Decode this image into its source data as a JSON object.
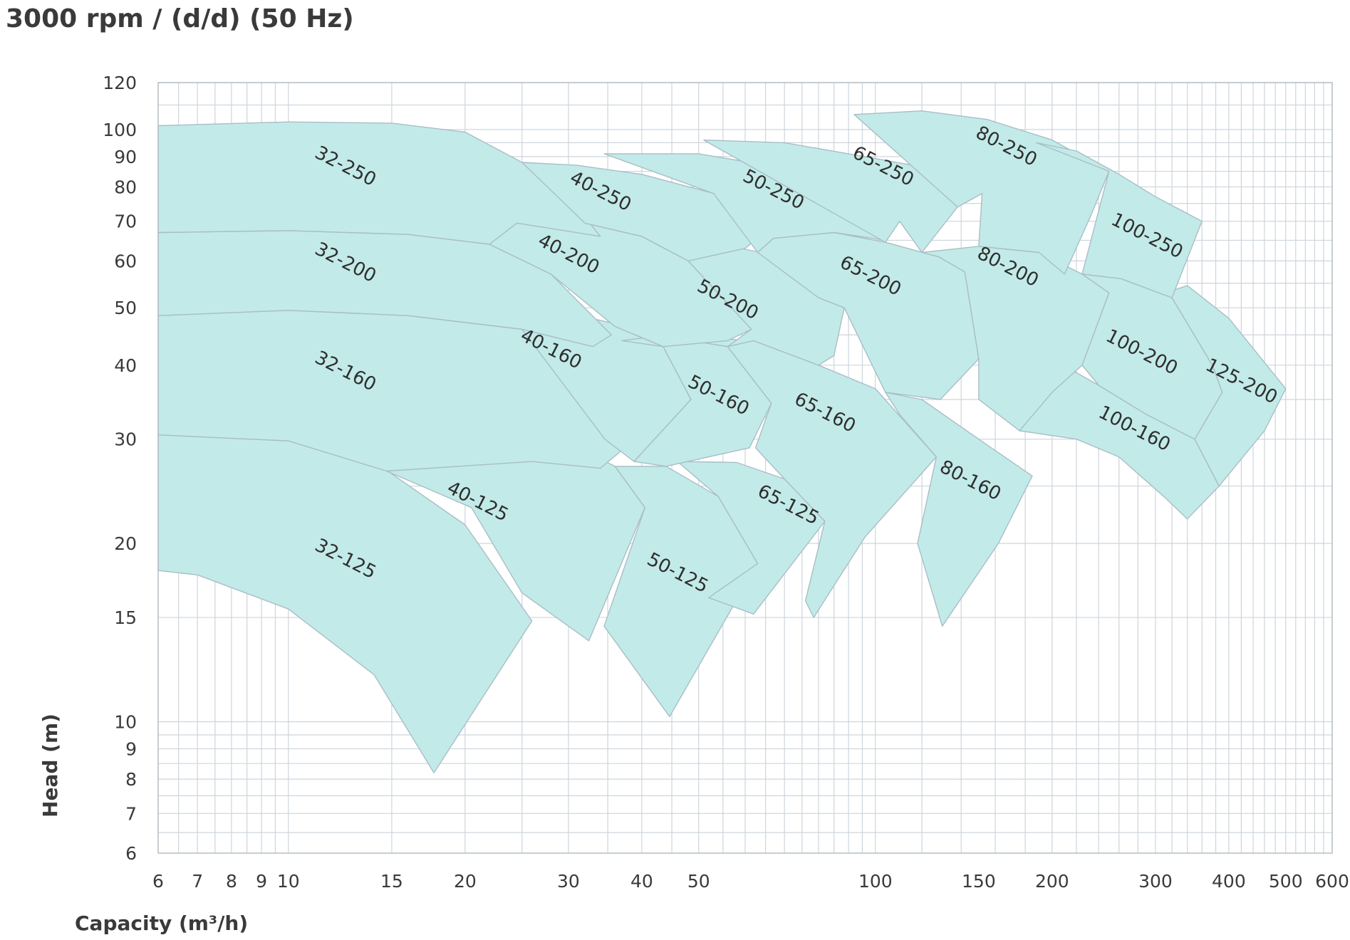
{
  "chart_data": {
    "type": "area",
    "title": "3000 rpm / (d/d) (50 Hz)",
    "xlabel": "Capacity (m³/h)",
    "ylabel": "Head (m)",
    "x_scale": "log",
    "y_scale": "log",
    "xlim": [
      6,
      600
    ],
    "ylim": [
      6,
      120
    ],
    "x_ticks": [
      "6",
      "7",
      "8",
      "9",
      "10",
      "15",
      "20",
      "30",
      "40",
      "50",
      "100",
      "150",
      "200",
      "300",
      "400",
      "500",
      "600"
    ],
    "y_ticks": [
      "6",
      "7",
      "8",
      "9",
      "10",
      "15",
      "20",
      "30",
      "40",
      "50",
      "60",
      "70",
      "80",
      "90",
      "100",
      "120"
    ],
    "grid": true,
    "colors": {
      "fill": "#c2eae8",
      "edge": "#a9bec6",
      "grid": "#cdd5db"
    },
    "regions": [
      {
        "label": "32-125",
        "label_at": [
          12.5,
          18.8
        ],
        "points": [
          [
            6,
            30.5
          ],
          [
            10,
            29.8
          ],
          [
            14,
            27.5
          ],
          [
            20,
            21.5
          ],
          [
            26,
            14.8
          ],
          [
            17.7,
            8.2
          ],
          [
            14,
            12
          ],
          [
            10,
            15.5
          ],
          [
            7,
            17.7
          ],
          [
            6,
            18
          ]
        ]
      },
      {
        "label": "40-125",
        "label_at": [
          21,
          23.5
        ],
        "points": [
          [
            14.7,
            26.5
          ],
          [
            16.6,
            33
          ],
          [
            26,
            31.8
          ],
          [
            36,
            27
          ],
          [
            40.5,
            23
          ],
          [
            32.5,
            13.7
          ],
          [
            25,
            16.5
          ],
          [
            20.5,
            23
          ]
        ]
      },
      {
        "label": "50-125",
        "label_at": [
          46,
          17.8
        ],
        "points": [
          [
            36,
            27
          ],
          [
            44,
            27
          ],
          [
            54,
            24
          ],
          [
            63,
            18.5
          ],
          [
            44.6,
            10.2
          ],
          [
            34.5,
            14.5
          ],
          [
            40.5,
            23
          ]
        ]
      },
      {
        "label": "65-125",
        "label_at": [
          71,
          23.2
        ],
        "points": [
          [
            46,
            27.5
          ],
          [
            58,
            27.4
          ],
          [
            70,
            25.7
          ],
          [
            82,
            21.8
          ],
          [
            62,
            15.2
          ],
          [
            52,
            16.2
          ],
          [
            63,
            18.5
          ],
          [
            54,
            24
          ]
        ]
      },
      {
        "label": "32-160",
        "label_at": [
          12.5,
          39
        ],
        "points": [
          [
            6,
            48.5
          ],
          [
            10,
            49.5
          ],
          [
            16,
            48.5
          ],
          [
            25,
            46
          ],
          [
            34,
            38
          ],
          [
            39,
            30
          ],
          [
            34,
            26.8
          ],
          [
            26,
            27.5
          ],
          [
            14.7,
            26.5
          ],
          [
            10,
            29.8
          ],
          [
            6,
            30.5
          ]
        ]
      },
      {
        "label": "40-160",
        "label_at": [
          28,
          42.5
        ],
        "points": [
          [
            16.1,
            51
          ],
          [
            25,
            51
          ],
          [
            36,
            47
          ],
          [
            43.5,
            43
          ],
          [
            48.5,
            35
          ],
          [
            38.8,
            27.5
          ],
          [
            34.6,
            30
          ],
          [
            25,
            46
          ],
          [
            16,
            48.5
          ]
        ]
      },
      {
        "label": "50-160",
        "label_at": [
          54,
          35.5
        ],
        "points": [
          [
            37,
            44
          ],
          [
            44,
            45
          ],
          [
            56,
            43
          ],
          [
            66.5,
            34.5
          ],
          [
            61,
            29
          ],
          [
            44,
            27
          ],
          [
            38.8,
            27.5
          ],
          [
            48.5,
            35
          ],
          [
            43.5,
            43
          ]
        ]
      },
      {
        "label": "65-160",
        "label_at": [
          82,
          33.2
        ],
        "points": [
          [
            42,
            45
          ],
          [
            62,
            44
          ],
          [
            80,
            40
          ],
          [
            100,
            36.5
          ],
          [
            127,
            28
          ],
          [
            96,
            20.5
          ],
          [
            78.5,
            15
          ],
          [
            76,
            16
          ],
          [
            82,
            21.8
          ],
          [
            70,
            25.7
          ],
          [
            62.5,
            29
          ],
          [
            66.5,
            34.5
          ],
          [
            56,
            43
          ]
        ]
      },
      {
        "label": "80-160",
        "label_at": [
          145,
          25.5
        ],
        "points": [
          [
            104,
            36
          ],
          [
            120,
            35
          ],
          [
            150,
            30
          ],
          [
            185,
            26
          ],
          [
            162,
            20
          ],
          [
            130,
            14.5
          ],
          [
            118,
            20
          ],
          [
            127,
            28
          ],
          [
            110,
            33
          ]
        ]
      },
      {
        "label": "100-160",
        "label_at": [
          276,
          31.2
        ],
        "points": [
          [
            176,
            31
          ],
          [
            220,
            30
          ],
          [
            260,
            28
          ],
          [
            310,
            24
          ],
          [
            340,
            22
          ],
          [
            385,
            25
          ],
          [
            350,
            30
          ],
          [
            290,
            33
          ],
          [
            240,
            37
          ],
          [
            200,
            41
          ]
        ]
      },
      {
        "label": "32-200",
        "label_at": [
          12.5,
          59.5
        ],
        "points": [
          [
            6,
            67
          ],
          [
            10,
            67.5
          ],
          [
            16,
            66.5
          ],
          [
            22,
            64
          ],
          [
            28,
            57
          ],
          [
            35.5,
            45
          ],
          [
            33,
            43
          ],
          [
            25,
            46
          ],
          [
            16,
            48.5
          ],
          [
            10,
            49.5
          ],
          [
            6,
            48.5
          ]
        ]
      },
      {
        "label": "40-200",
        "label_at": [
          30,
          61.5
        ],
        "points": [
          [
            22,
            64
          ],
          [
            24.5,
            69.5
          ],
          [
            32,
            69.5
          ],
          [
            40,
            66
          ],
          [
            48,
            60
          ],
          [
            61.5,
            46
          ],
          [
            56,
            44
          ],
          [
            43.5,
            43
          ],
          [
            36,
            46.5
          ],
          [
            28,
            57
          ]
        ]
      },
      {
        "label": "50-200",
        "label_at": [
          56,
          51.5
        ],
        "points": [
          [
            40,
            66
          ],
          [
            50,
            65
          ],
          [
            64,
            62
          ],
          [
            80,
            52
          ],
          [
            88.5,
            50
          ],
          [
            85,
            41.5
          ],
          [
            80,
            40
          ],
          [
            62,
            44
          ],
          [
            56,
            43
          ],
          [
            61.5,
            46
          ],
          [
            48,
            60
          ]
        ]
      },
      {
        "label": "65-200",
        "label_at": [
          98,
          56.5
        ],
        "points": [
          [
            63,
            62
          ],
          [
            67,
            65.5
          ],
          [
            85,
            67
          ],
          [
            104,
            64.5
          ],
          [
            128,
            61
          ],
          [
            142,
            57.5
          ],
          [
            150,
            41
          ],
          [
            129,
            35
          ],
          [
            104,
            36
          ],
          [
            88.5,
            50
          ],
          [
            80,
            52
          ]
        ]
      },
      {
        "label": "80-200",
        "label_at": [
          168,
          58.5
        ],
        "points": [
          [
            120,
            62
          ],
          [
            150,
            63.5
          ],
          [
            190,
            62
          ],
          [
            225,
            57
          ],
          [
            250,
            53
          ],
          [
            225,
            40
          ],
          [
            200,
            36
          ],
          [
            176,
            31
          ],
          [
            150,
            35
          ],
          [
            150,
            41
          ],
          [
            142,
            57.5
          ],
          [
            128,
            61
          ]
        ]
      },
      {
        "label": "100-200",
        "label_at": [
          284,
          42
        ],
        "points": [
          [
            225,
            57
          ],
          [
            262,
            56
          ],
          [
            320,
            52
          ],
          [
            375,
            40
          ],
          [
            390,
            36
          ],
          [
            350,
            30
          ],
          [
            290,
            33
          ],
          [
            240,
            37
          ],
          [
            225,
            40
          ],
          [
            250,
            53
          ]
        ]
      },
      {
        "label": "125-200",
        "label_at": [
          420,
          37.5
        ],
        "points": [
          [
            312,
            53
          ],
          [
            340,
            54.5
          ],
          [
            400,
            48
          ],
          [
            500,
            36.5
          ],
          [
            460,
            31
          ],
          [
            385,
            25
          ],
          [
            350,
            30
          ],
          [
            390,
            36
          ],
          [
            375,
            40
          ],
          [
            320,
            52
          ]
        ]
      },
      {
        "label": "32-250",
        "label_at": [
          12.5,
          86.5
        ],
        "points": [
          [
            6,
            101.5
          ],
          [
            10,
            103
          ],
          [
            15,
            102.5
          ],
          [
            20,
            99
          ],
          [
            25,
            88
          ],
          [
            30,
            77
          ],
          [
            34,
            66
          ],
          [
            24.5,
            69.5
          ],
          [
            22,
            64
          ],
          [
            16,
            66.5
          ],
          [
            10,
            67.5
          ],
          [
            6,
            67
          ]
        ]
      },
      {
        "label": "40-250",
        "label_at": [
          34,
          78.5
        ],
        "points": [
          [
            25,
            88
          ],
          [
            31,
            87
          ],
          [
            40,
            84
          ],
          [
            53,
            78
          ],
          [
            66,
            68
          ],
          [
            60,
            63
          ],
          [
            48,
            60
          ],
          [
            40,
            66
          ],
          [
            32,
            69.5
          ]
        ]
      },
      {
        "label": "50-250",
        "label_at": [
          67,
          79
        ],
        "points": [
          [
            34.5,
            91
          ],
          [
            50,
            91
          ],
          [
            70,
            86
          ],
          [
            90,
            80
          ],
          [
            110,
            70
          ],
          [
            104,
            65
          ],
          [
            85,
            67
          ],
          [
            67,
            65.5
          ],
          [
            63,
            62
          ],
          [
            53,
            78
          ]
        ]
      },
      {
        "label": "65-250",
        "label_at": [
          103,
          86.5
        ],
        "points": [
          [
            51,
            96
          ],
          [
            70,
            95
          ],
          [
            90,
            91
          ],
          [
            116,
            87
          ],
          [
            152,
            78
          ],
          [
            138,
            74
          ],
          [
            120,
            62
          ],
          [
            110,
            70
          ],
          [
            104,
            64.5
          ]
        ]
      },
      {
        "label": "80-250",
        "label_at": [
          167,
          93.5
        ],
        "points": [
          [
            92,
            106
          ],
          [
            120,
            107.5
          ],
          [
            155,
            104
          ],
          [
            200,
            96
          ],
          [
            250,
            85
          ],
          [
            232,
            71
          ],
          [
            210,
            57
          ],
          [
            190,
            62
          ],
          [
            150,
            63.5
          ],
          [
            152,
            78
          ],
          [
            138,
            74
          ]
        ]
      },
      {
        "label": "100-250",
        "label_at": [
          290,
          66
        ],
        "points": [
          [
            188,
            95
          ],
          [
            220,
            92
          ],
          [
            260,
            84
          ],
          [
            300,
            77
          ],
          [
            360,
            70
          ],
          [
            320,
            52
          ],
          [
            262,
            56
          ],
          [
            225,
            57
          ],
          [
            250,
            85
          ]
        ]
      }
    ]
  }
}
